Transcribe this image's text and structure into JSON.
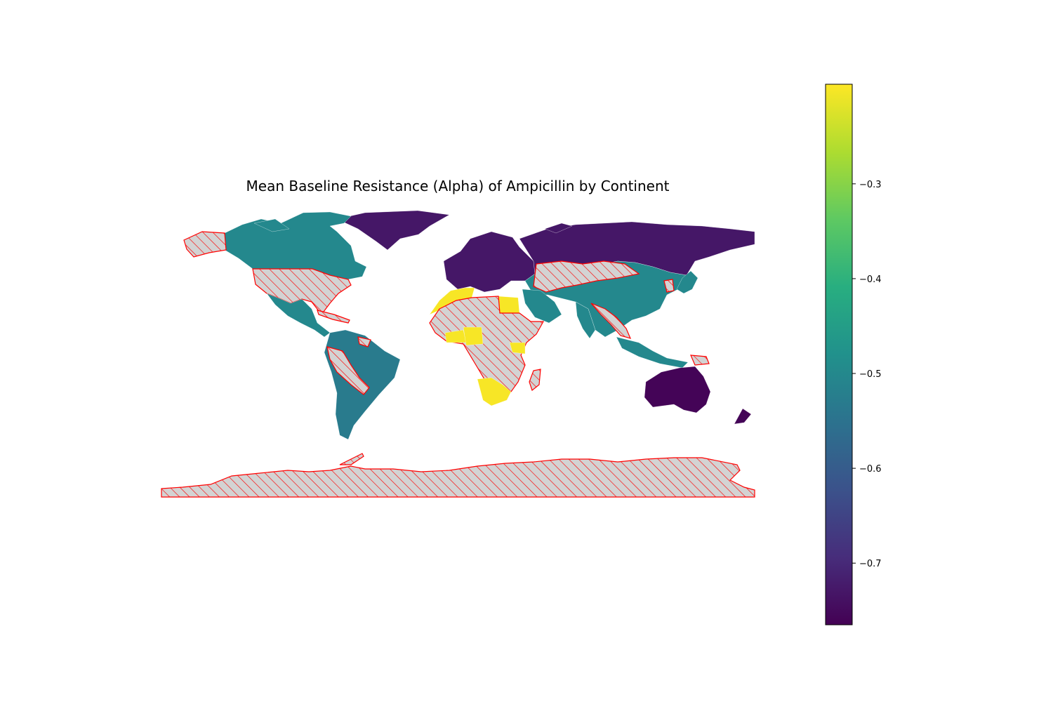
{
  "map": {
    "title": "Mean Baseline Resistance (Alpha) of Ampicillin by Continent",
    "colormap": "viridis",
    "missing_fill": "#d3d3d3",
    "missing_edge": "#ff0000",
    "missing_hatch": "////"
  },
  "chart_data": {
    "type": "choropleth",
    "title": "Mean Baseline Resistance (Alpha) of Ampicillin by Continent",
    "colorbar": {
      "range": [
        -0.765,
        -0.195
      ],
      "ticks": [
        -0.3,
        -0.4,
        -0.5,
        -0.6,
        -0.7
      ],
      "tick_labels": [
        "−0.3",
        "−0.4",
        "−0.5",
        "−0.6",
        "−0.7"
      ]
    },
    "regions": [
      {
        "region": "Europe",
        "value": -0.73
      },
      {
        "region": "Asia",
        "value": -0.5
      },
      {
        "region": "North America",
        "value": -0.5
      },
      {
        "region": "South America",
        "value": -0.53
      },
      {
        "region": "Oceania",
        "value": -0.76
      },
      {
        "region": "Africa",
        "value": -0.2
      },
      {
        "region": "Antarctica",
        "value": null
      }
    ]
  }
}
